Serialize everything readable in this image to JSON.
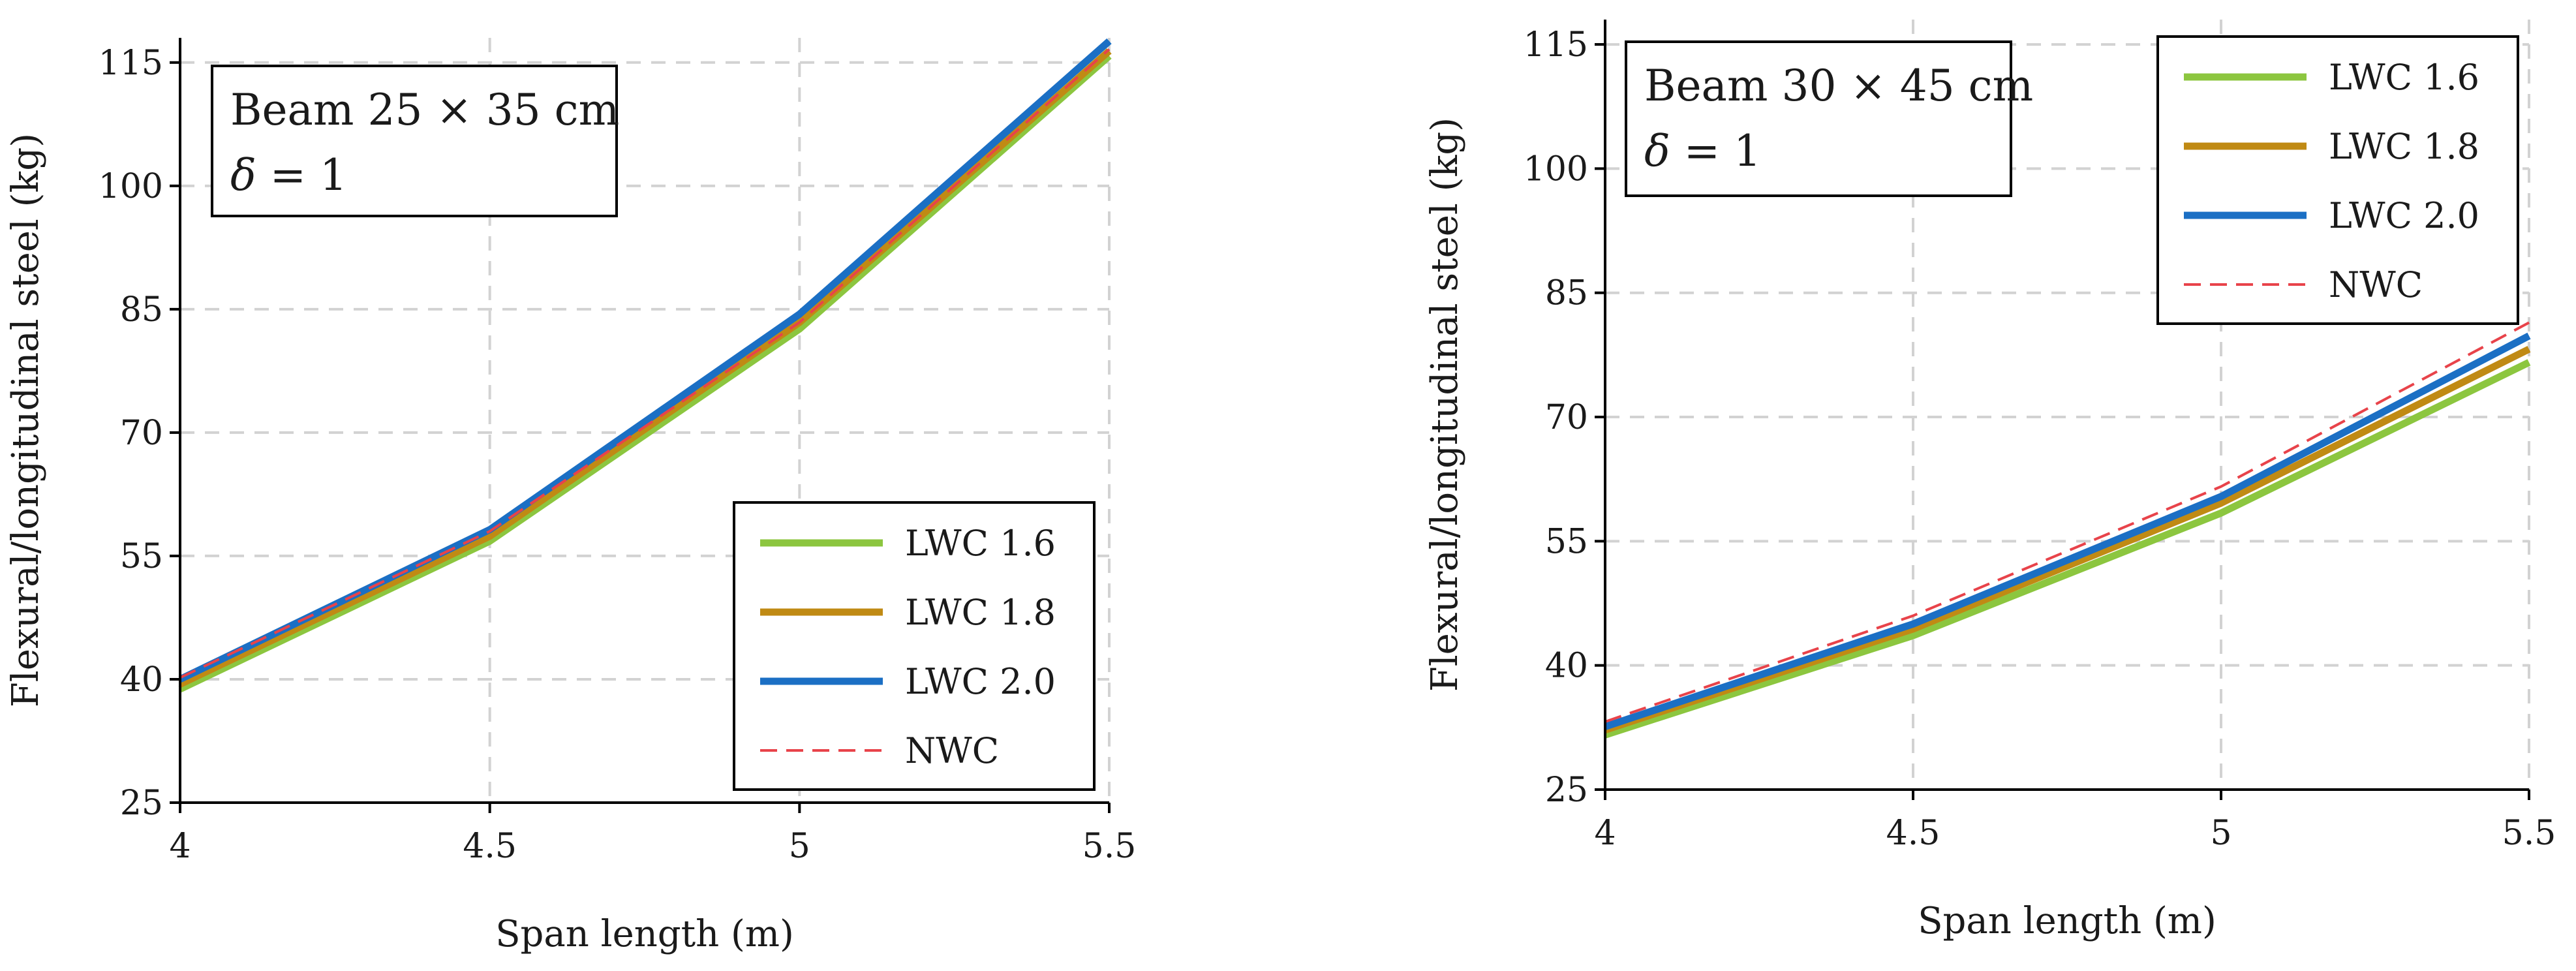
{
  "chart_data": [
    {
      "type": "line",
      "xlabel": "Span length (m)",
      "ylabel": "Flexural/longitudinal steel (kg)",
      "x_ticks": [
        "4",
        "4.5",
        "5",
        "5.5"
      ],
      "y_ticks": [
        "25",
        "40",
        "55",
        "70",
        "85",
        "100",
        "115"
      ],
      "xlim": [
        4,
        5.5
      ],
      "ylim": [
        25,
        118
      ],
      "grid": true,
      "annotation": {
        "line1": "Beam 25 × 35 cm",
        "line2_symbol": "δ",
        "line2_rest": " = 1"
      },
      "legend_position": "bottom-right",
      "x": [
        4,
        4.5,
        5,
        5.5
      ],
      "series": [
        {
          "name": "LWC 1.6",
          "color": "#8cc63f",
          "style": "solid",
          "values": [
            38.8,
            56.8,
            82.6,
            115.8
          ]
        },
        {
          "name": "LWC 1.8",
          "color": "#c08a14",
          "style": "solid",
          "values": [
            39.4,
            57.4,
            83.4,
            116.4
          ]
        },
        {
          "name": "LWC 2.0",
          "color": "#1b6fc4",
          "style": "solid",
          "values": [
            40.0,
            58.2,
            84.4,
            117.6
          ]
        },
        {
          "name": "NWC",
          "color": "#e8434a",
          "style": "dashed",
          "values": [
            40.2,
            58.0,
            83.4,
            116.6
          ]
        }
      ]
    },
    {
      "type": "line",
      "xlabel": "Span length (m)",
      "ylabel": "Flexural/longitudinal steel (kg)",
      "x_ticks": [
        "4",
        "4.5",
        "5",
        "5.5"
      ],
      "y_ticks": [
        "25",
        "40",
        "55",
        "70",
        "85",
        "100",
        "115"
      ],
      "xlim": [
        4,
        5.5
      ],
      "ylim": [
        25,
        118
      ],
      "grid": true,
      "annotation": {
        "line1": "Beam 30 × 45 cm",
        "line2_symbol": "δ",
        "line2_rest": " = 1"
      },
      "legend_position": "top-right",
      "x": [
        4,
        4.5,
        5,
        5.5
      ],
      "series": [
        {
          "name": "LWC 1.6",
          "color": "#8cc63f",
          "style": "solid",
          "values": [
            31.6,
            43.6,
            58.4,
            76.6
          ]
        },
        {
          "name": "LWC 1.8",
          "color": "#c08a14",
          "style": "solid",
          "values": [
            32.2,
            44.4,
            59.6,
            78.2
          ]
        },
        {
          "name": "LWC 2.0",
          "color": "#1b6fc4",
          "style": "solid",
          "values": [
            32.6,
            45.0,
            60.4,
            79.8
          ]
        },
        {
          "name": "NWC",
          "color": "#e8434a",
          "style": "dashed",
          "values": [
            33.2,
            46.0,
            61.6,
            81.4
          ]
        }
      ]
    }
  ]
}
